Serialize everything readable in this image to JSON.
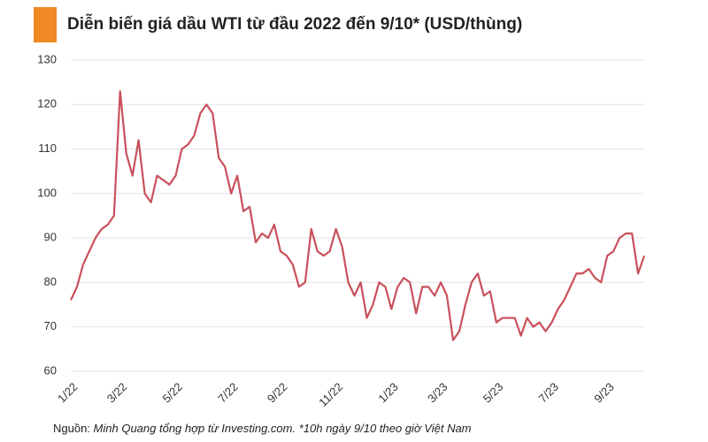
{
  "chart_data": {
    "type": "line",
    "title": "Diễn biến giá dầu WTI từ đầu 2022 đến 9/10* (USD/thùng)",
    "source_label": "Nguồn:",
    "source_text": "Minh Quang tổng hợp từ Investing.com. *10h ngày 9/10 theo giờ Việt Nam",
    "categories": [
      "1/22",
      null,
      null,
      null,
      null,
      null,
      null,
      null,
      "3/22",
      null,
      null,
      null,
      null,
      null,
      null,
      null,
      null,
      "5/22",
      null,
      null,
      null,
      null,
      null,
      null,
      null,
      null,
      "7/22",
      null,
      null,
      null,
      null,
      null,
      null,
      null,
      "9/22",
      null,
      null,
      null,
      null,
      null,
      null,
      null,
      null,
      "11/22",
      null,
      null,
      null,
      null,
      null,
      null,
      null,
      null,
      "1/23",
      null,
      null,
      null,
      null,
      null,
      null,
      null,
      "3/23",
      null,
      null,
      null,
      null,
      null,
      null,
      null,
      null,
      "5/23",
      null,
      null,
      null,
      null,
      null,
      null,
      null,
      null,
      "7/23",
      null,
      null,
      null,
      null,
      null,
      null,
      null,
      null,
      "9/23",
      null,
      null,
      null,
      null,
      null,
      null
    ],
    "series": [
      {
        "name": "WTI",
        "color": "#c9505c",
        "values": [
          76,
          79,
          84,
          87,
          90,
          92,
          93,
          95,
          123,
          109,
          104,
          112,
          100,
          98,
          104,
          103,
          102,
          104,
          110,
          111,
          113,
          118,
          120,
          118,
          108,
          106,
          100,
          104,
          96,
          97,
          89,
          91,
          90,
          93,
          87,
          86,
          84,
          79,
          80,
          92,
          87,
          86,
          87,
          92,
          88,
          80,
          77,
          80,
          72,
          75,
          80,
          79,
          74,
          79,
          81,
          80,
          73,
          79,
          79,
          77,
          80,
          77,
          67,
          69,
          75,
          80,
          82,
          77,
          78,
          71,
          72,
          72,
          72,
          68,
          72,
          70,
          71,
          69,
          71,
          74,
          76,
          79,
          82,
          82,
          83,
          81,
          80,
          86,
          87,
          90,
          91,
          91,
          82,
          86
        ]
      }
    ],
    "ylim": [
      60,
      130
    ],
    "yticks": [
      60,
      70,
      80,
      90,
      100,
      110,
      120,
      130
    ],
    "grid": true
  }
}
